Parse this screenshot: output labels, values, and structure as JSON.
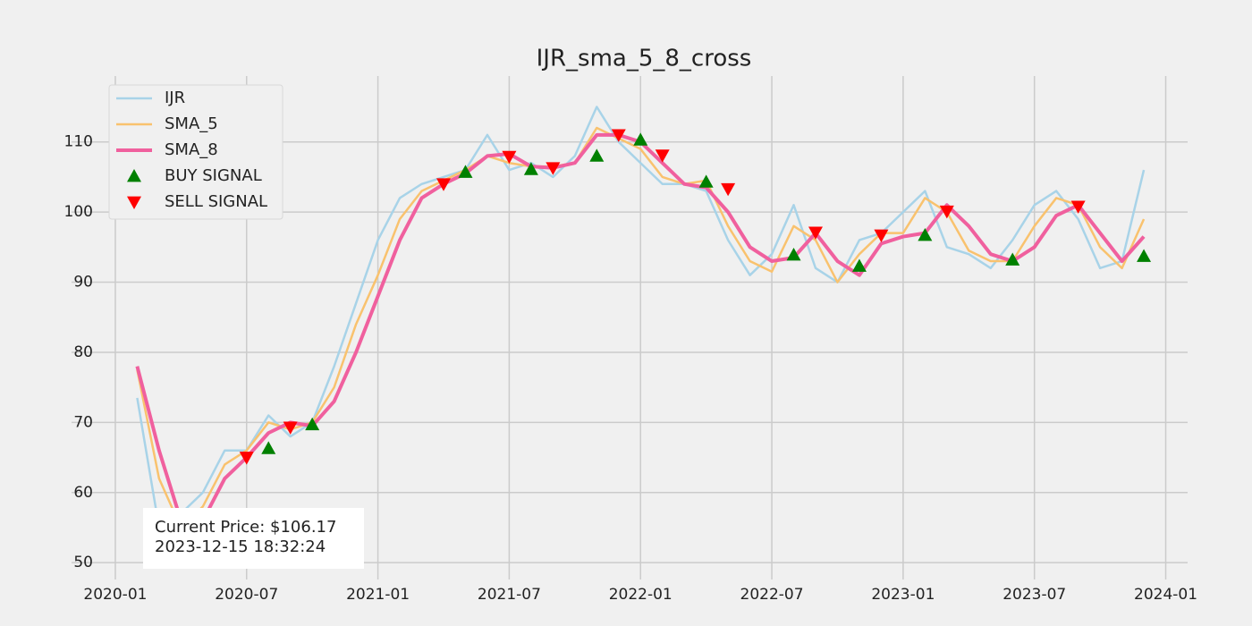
{
  "chart_data": {
    "type": "line",
    "title": "IJR_sma_5_8_cross",
    "x": [
      "2020-02",
      "2020-03",
      "2020-04",
      "2020-05",
      "2020-06",
      "2020-07",
      "2020-08",
      "2020-09",
      "2020-10",
      "2020-11",
      "2020-12",
      "2021-01",
      "2021-02",
      "2021-03",
      "2021-04",
      "2021-05",
      "2021-06",
      "2021-07",
      "2021-08",
      "2021-09",
      "2021-10",
      "2021-11",
      "2021-12",
      "2022-01",
      "2022-02",
      "2022-03",
      "2022-04",
      "2022-05",
      "2022-06",
      "2022-07",
      "2022-08",
      "2022-09",
      "2022-10",
      "2022-11",
      "2022-12",
      "2023-01",
      "2023-02",
      "2023-03",
      "2023-04",
      "2023-05",
      "2023-06",
      "2023-07",
      "2023-08",
      "2023-09",
      "2023-10",
      "2023-11",
      "2023-12"
    ],
    "series": [
      {
        "name": "IJR",
        "color": "#a8d3e8",
        "width": 2.5,
        "values": [
          73.5,
          55,
          57,
          60,
          66,
          66,
          71,
          68,
          70,
          78,
          87,
          96,
          102,
          104,
          105,
          106,
          111,
          106,
          107,
          105,
          108,
          115,
          110,
          107,
          104,
          104,
          103,
          96,
          91,
          94,
          101,
          92,
          90,
          96,
          97,
          100,
          103,
          95,
          94,
          92,
          96,
          101,
          103,
          99,
          92,
          93,
          106
        ]
      },
      {
        "name": "SMA_5",
        "color": "#f9c26e",
        "width": 2.5,
        "values": [
          77.5,
          62,
          55,
          58,
          64,
          66,
          70,
          69,
          70,
          75,
          84,
          91,
          99,
          103,
          104.5,
          106,
          108,
          107,
          106.5,
          106.5,
          107,
          112,
          110.5,
          109,
          105,
          104,
          104.5,
          98,
          93,
          91.5,
          98,
          96,
          90,
          94,
          97,
          97,
          102,
          100,
          94.5,
          93,
          93,
          98,
          102,
          101,
          95,
          92,
          99
        ]
      },
      {
        "name": "SMA_8",
        "color": "#f0609e",
        "width": 4,
        "values": [
          78,
          66,
          56,
          56,
          62,
          65,
          68.5,
          70,
          69.5,
          73,
          80,
          88,
          96,
          102,
          104,
          105.5,
          108,
          108.3,
          106.5,
          106.3,
          107,
          111,
          111,
          110,
          107,
          104,
          103.5,
          100,
          95,
          93,
          93.5,
          97,
          93,
          91,
          95.5,
          96.5,
          97,
          101,
          98,
          94,
          93,
          95,
          99.5,
          101,
          97,
          93,
          96.5
        ]
      },
      {
        "name": "BUY SIGNAL",
        "color": "#008000",
        "marker": "up",
        "x": [
          "2020-08",
          "2020-10",
          "2021-05",
          "2021-08",
          "2021-11",
          "2022-01",
          "2022-04",
          "2022-08",
          "2022-11",
          "2023-02",
          "2023-06",
          "2023-12"
        ],
        "values": [
          66.3,
          69.7,
          105.7,
          106.1,
          108.0,
          110.3,
          104.3,
          93.9,
          92.3,
          96.7,
          93.2,
          93.7
        ]
      },
      {
        "name": "SELL SIGNAL",
        "color": "#ff0000",
        "marker": "down",
        "x": [
          "2020-07",
          "2020-09",
          "2021-04",
          "2021-07",
          "2021-09",
          "2021-12",
          "2022-02",
          "2022-05",
          "2022-09",
          "2022-12",
          "2023-03",
          "2023-09"
        ],
        "values": [
          65.0,
          69.3,
          104.0,
          107.9,
          106.3,
          111.0,
          108.1,
          103.3,
          97.1,
          96.7,
          100.1,
          100.8
        ]
      }
    ],
    "xlim": [
      "2019-11",
      "2024-02"
    ],
    "xticks": [
      "2020-01",
      "2020-07",
      "2021-01",
      "2021-07",
      "2022-01",
      "2022-07",
      "2023-01",
      "2023-07",
      "2024-01"
    ],
    "ylim": [
      47.6,
      119.4
    ],
    "yticks": [
      50,
      60,
      70,
      80,
      90,
      100,
      110
    ],
    "grid": true,
    "legend": "upper left",
    "annotation": [
      "Current Price: $106.17",
      "2023-12-15 18:32:24"
    ]
  }
}
